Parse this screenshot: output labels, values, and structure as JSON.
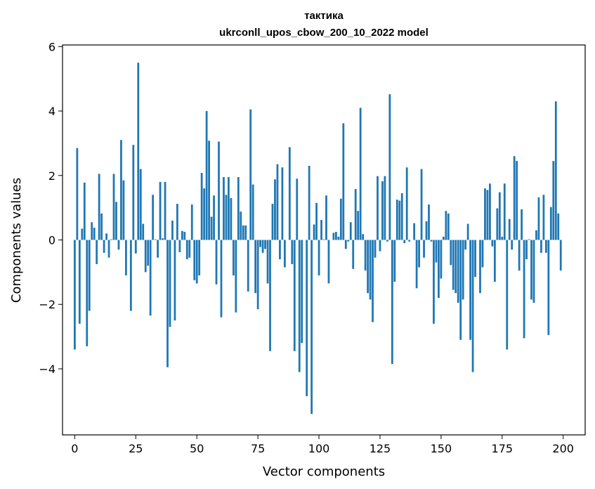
{
  "chart_data": {
    "type": "bar",
    "title_lines": [
      "тактика",
      "ukrconll_upos_cbow_200_10_2022 model"
    ],
    "xlabel": "Vector components",
    "ylabel": "Components values",
    "xlim": [
      -5,
      209
    ],
    "ylim": [
      -6.05,
      6.05
    ],
    "x_ticks": [
      0,
      25,
      50,
      75,
      100,
      125,
      150,
      175,
      200
    ],
    "y_ticks": [
      -4,
      -2,
      0,
      2,
      4,
      6
    ],
    "x_tick_labels": [
      "0",
      "25",
      "50",
      "75",
      "100",
      "125",
      "150",
      "175",
      "200"
    ],
    "y_tick_labels": [
      "−4",
      "−2",
      "0",
      "2",
      "4",
      "6"
    ],
    "bar_color": "#1f77b4",
    "grid": false,
    "x": [
      0,
      1,
      2,
      3,
      4,
      5,
      6,
      7,
      8,
      9,
      10,
      11,
      12,
      13,
      14,
      15,
      16,
      17,
      18,
      19,
      20,
      21,
      22,
      23,
      24,
      25,
      26,
      27,
      28,
      29,
      30,
      31,
      32,
      33,
      34,
      35,
      36,
      37,
      38,
      39,
      40,
      41,
      42,
      43,
      44,
      45,
      46,
      47,
      48,
      49,
      50,
      51,
      52,
      53,
      54,
      55,
      56,
      57,
      58,
      59,
      60,
      61,
      62,
      63,
      64,
      65,
      66,
      67,
      68,
      69,
      70,
      71,
      72,
      73,
      74,
      75,
      76,
      77,
      78,
      79,
      80,
      81,
      82,
      83,
      84,
      85,
      86,
      87,
      88,
      89,
      90,
      91,
      92,
      93,
      94,
      95,
      96,
      97,
      98,
      99,
      100,
      101,
      102,
      103,
      104,
      105,
      106,
      107,
      108,
      109,
      110,
      111,
      112,
      113,
      114,
      115,
      116,
      117,
      118,
      119,
      120,
      121,
      122,
      123,
      124,
      125,
      126,
      127,
      128,
      129,
      130,
      131,
      132,
      133,
      134,
      135,
      136,
      137,
      138,
      139,
      140,
      141,
      142,
      143,
      144,
      145,
      146,
      147,
      148,
      149,
      150,
      151,
      152,
      153,
      154,
      155,
      156,
      157,
      158,
      159,
      160,
      161,
      162,
      163,
      164,
      165,
      166,
      167,
      168,
      169,
      170,
      171,
      172,
      173,
      174,
      175,
      176,
      177,
      178,
      179,
      180,
      181,
      182,
      183,
      184,
      185,
      186,
      187,
      188,
      189,
      190,
      191,
      192,
      193,
      194,
      195,
      196,
      197,
      198,
      199
    ],
    "values": [
      -3.4,
      2.85,
      -2.6,
      0.35,
      1.78,
      -3.3,
      -2.2,
      0.55,
      0.38,
      -0.75,
      2.05,
      0.82,
      -0.4,
      0.2,
      -0.55,
      0.02,
      2.05,
      1.18,
      -0.3,
      3.1,
      1.85,
      -1.1,
      0.0,
      -2.2,
      2.95,
      -0.42,
      5.5,
      2.2,
      0.5,
      -1.0,
      -0.8,
      -2.35,
      1.4,
      0.02,
      -0.55,
      1.8,
      0.05,
      1.8,
      -3.95,
      -2.7,
      0.6,
      -2.5,
      1.12,
      -0.38,
      0.28,
      0.25,
      -0.6,
      -0.55,
      1.1,
      -1.25,
      -1.35,
      -1.1,
      2.08,
      1.6,
      4.0,
      3.08,
      0.72,
      1.38,
      -1.38,
      3.05,
      -2.4,
      1.95,
      1.4,
      1.95,
      1.3,
      -1.1,
      -2.25,
      1.95,
      0.88,
      0.45,
      0.45,
      -1.6,
      4.05,
      1.72,
      -1.65,
      -2.15,
      -0.22,
      -0.4,
      -0.28,
      -1.35,
      -3.45,
      1.12,
      1.88,
      2.35,
      -0.6,
      2.25,
      -0.85,
      0.0,
      2.88,
      -0.75,
      -3.45,
      1.9,
      -4.1,
      -3.2,
      0.0,
      -4.85,
      2.3,
      -5.4,
      0.48,
      1.15,
      -1.1,
      0.62,
      0.02,
      1.38,
      -1.35,
      0.0,
      0.22,
      0.25,
      0.1,
      1.28,
      3.62,
      -0.28,
      -0.05,
      0.55,
      -0.9,
      1.58,
      0.9,
      4.1,
      0.18,
      -0.95,
      -1.65,
      -1.85,
      -2.55,
      -0.55,
      1.98,
      -0.35,
      1.82,
      1.98,
      -0.05,
      4.52,
      -3.85,
      -1.3,
      1.25,
      1.22,
      1.45,
      -0.1,
      2.25,
      -0.05,
      0.0,
      0.52,
      -1.5,
      -0.85,
      2.2,
      -0.55,
      0.58,
      1.1,
      -0.05,
      -2.6,
      -0.7,
      -1.8,
      -1.2,
      0.1,
      0.9,
      0.82,
      -0.78,
      -1.55,
      -1.65,
      -1.95,
      -3.1,
      -1.85,
      -0.3,
      0.5,
      -3.1,
      -4.1,
      -1.15,
      0.0,
      -1.65,
      -0.85,
      1.6,
      1.55,
      1.75,
      -0.2,
      -1.3,
      0.98,
      1.48,
      0.1,
      1.75,
      -3.4,
      0.65,
      -0.3,
      2.6,
      2.45,
      -0.95,
      0.95,
      -3.05,
      -0.6,
      0.02,
      -1.85,
      -1.95,
      0.3,
      1.32,
      -0.4,
      1.4,
      -0.4,
      -2.95,
      1.02,
      2.45,
      4.3,
      0.82,
      -0.95
    ]
  }
}
